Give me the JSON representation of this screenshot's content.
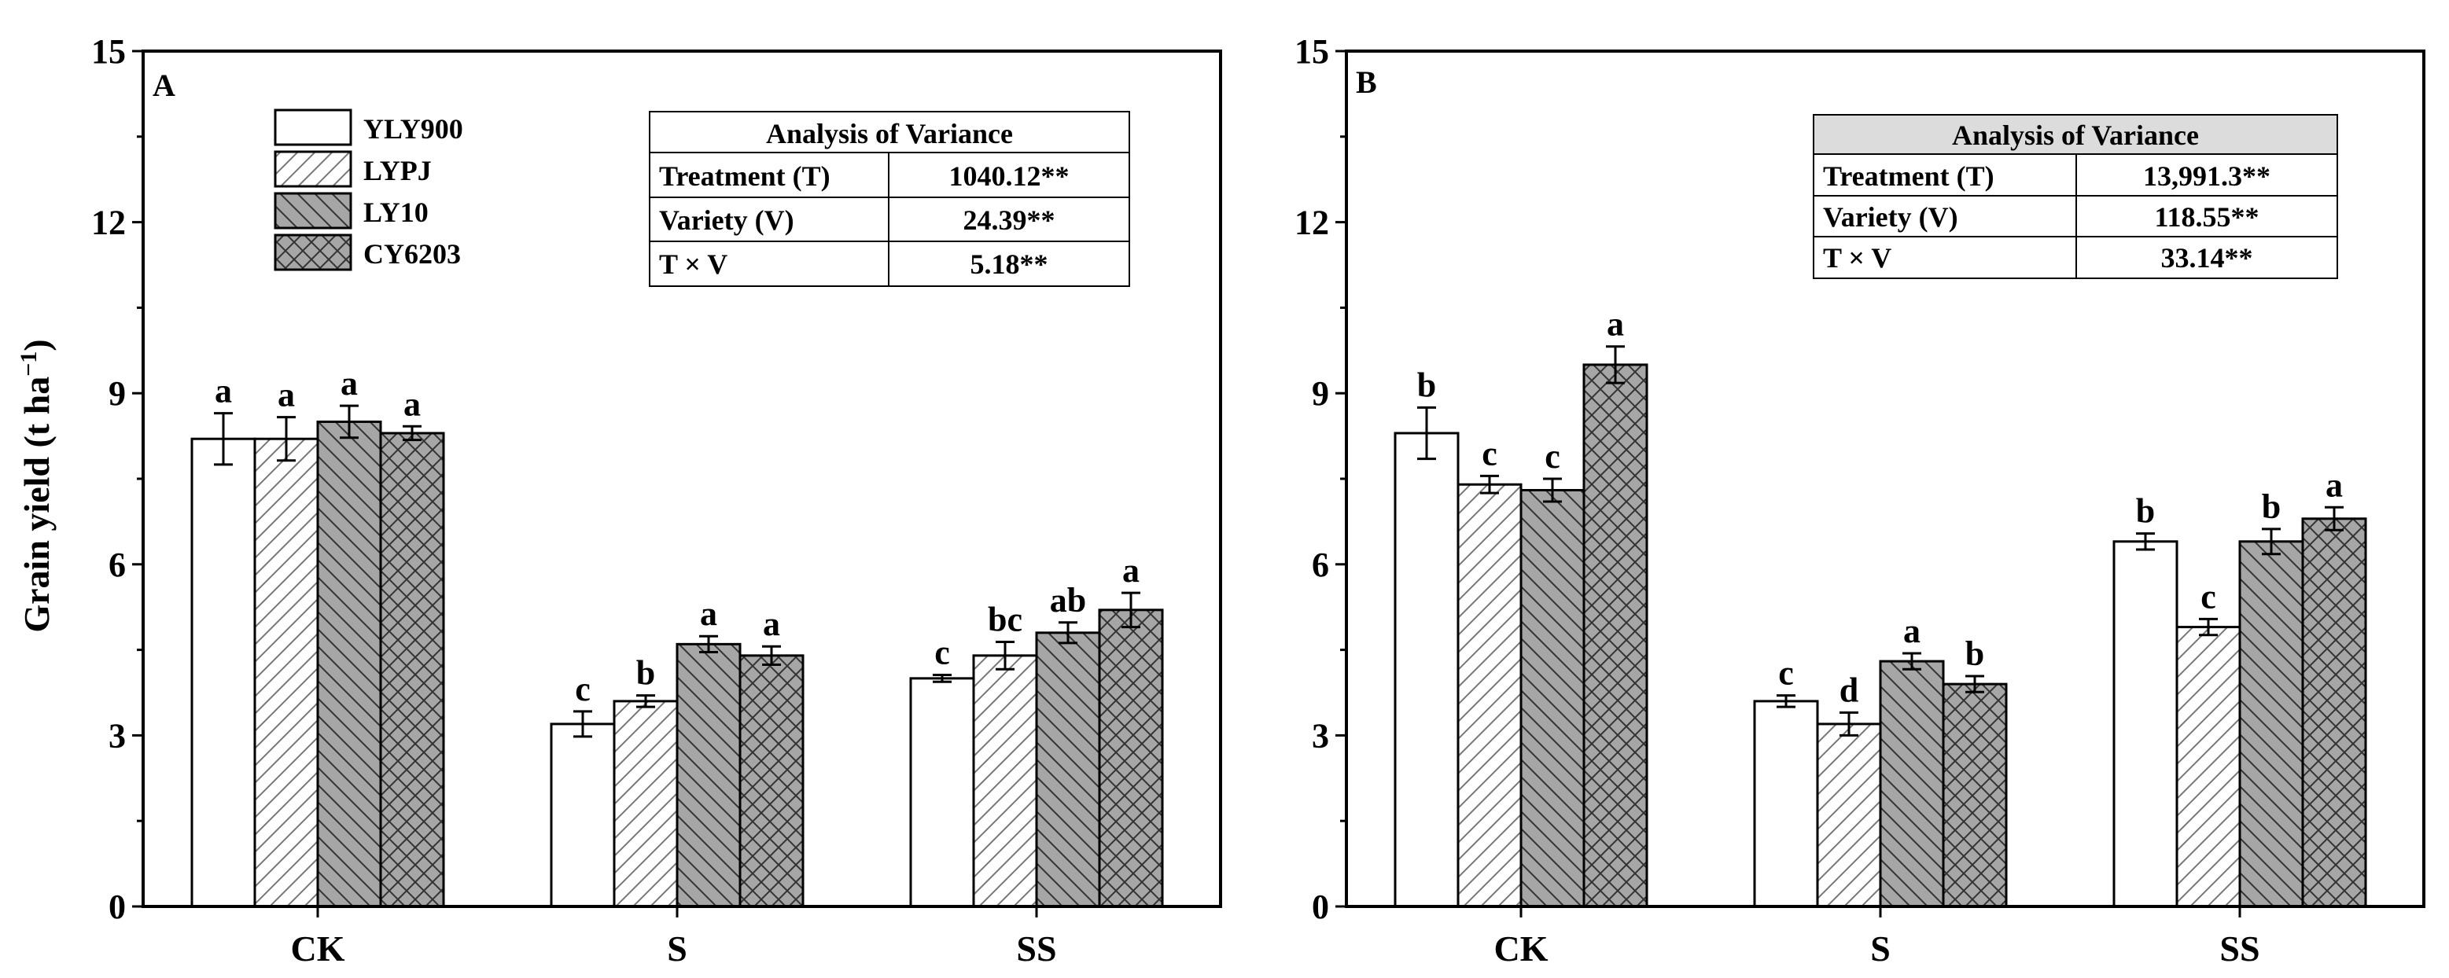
{
  "colors": {
    "YLY900": "#ffffff",
    "LYPJ": "#ffffff",
    "LY10": "#a6a6a6",
    "CY6203": "#a6a6a6",
    "anova_header_B": "#dcdcdc"
  },
  "ylabel": "Grain yield (t ha",
  "ylabel_sup": "−1",
  "ylabel_close": ")",
  "chart_data": [
    {
      "type": "bar",
      "panel": "A",
      "categories": [
        "CK",
        "S",
        "SS"
      ],
      "ylabel": "Grain yield (t ha−1)",
      "ylim": [
        0,
        15
      ],
      "yticks": [
        "0",
        "3",
        "6",
        "9",
        "12",
        "15"
      ],
      "legend": [
        "YLY900",
        "LYPJ",
        "LY10",
        "CY6203"
      ],
      "series": [
        {
          "name": "YLY900",
          "values": [
            8.2,
            3.2,
            4.0
          ],
          "errors": [
            0.45,
            0.22,
            0.06
          ],
          "letters": [
            "a",
            "c",
            "c"
          ]
        },
        {
          "name": "LYPJ",
          "values": [
            8.2,
            3.6,
            4.4
          ],
          "errors": [
            0.38,
            0.1,
            0.24
          ],
          "letters": [
            "a",
            "b",
            "bc"
          ]
        },
        {
          "name": "LY10",
          "values": [
            8.5,
            4.6,
            4.8
          ],
          "errors": [
            0.28,
            0.14,
            0.18
          ],
          "letters": [
            "a",
            "a",
            "ab"
          ]
        },
        {
          "name": "CY6203",
          "values": [
            8.3,
            4.4,
            5.2
          ],
          "errors": [
            0.12,
            0.16,
            0.3
          ],
          "letters": [
            "a",
            "a",
            "a"
          ]
        }
      ],
      "anova": {
        "title": "Analysis of Variance",
        "rows": [
          {
            "label": "Treatment (T)",
            "value": "1040.12**"
          },
          {
            "label": "Variety (V)",
            "value": "24.39**"
          },
          {
            "label": "T × V",
            "value": "5.18**"
          }
        ]
      }
    },
    {
      "type": "bar",
      "panel": "B",
      "categories": [
        "CK",
        "S",
        "SS"
      ],
      "ylabel": "",
      "ylim": [
        0,
        15
      ],
      "yticks": [
        "0",
        "3",
        "6",
        "9",
        "12",
        "15"
      ],
      "legend": [],
      "series": [
        {
          "name": "YLY900",
          "values": [
            8.3,
            3.6,
            6.4
          ],
          "errors": [
            0.45,
            0.1,
            0.14
          ],
          "letters": [
            "b",
            "c",
            "b"
          ]
        },
        {
          "name": "LYPJ",
          "values": [
            7.4,
            3.2,
            4.9
          ],
          "errors": [
            0.15,
            0.2,
            0.14
          ],
          "letters": [
            "c",
            "d",
            "c"
          ]
        },
        {
          "name": "LY10",
          "values": [
            7.3,
            4.3,
            6.4
          ],
          "errors": [
            0.2,
            0.14,
            0.22
          ],
          "letters": [
            "c",
            "a",
            "b"
          ]
        },
        {
          "name": "CY6203",
          "values": [
            9.5,
            3.9,
            6.8
          ],
          "errors": [
            0.32,
            0.14,
            0.2
          ],
          "letters": [
            "a",
            "b",
            "a"
          ]
        }
      ],
      "anova": {
        "title": "Analysis of Variance",
        "rows": [
          {
            "label": "Treatment (T)",
            "value": "13,991.3**"
          },
          {
            "label": "Variety (V)",
            "value": "118.55**"
          },
          {
            "label": "T × V",
            "value": "33.14**"
          }
        ]
      }
    }
  ]
}
